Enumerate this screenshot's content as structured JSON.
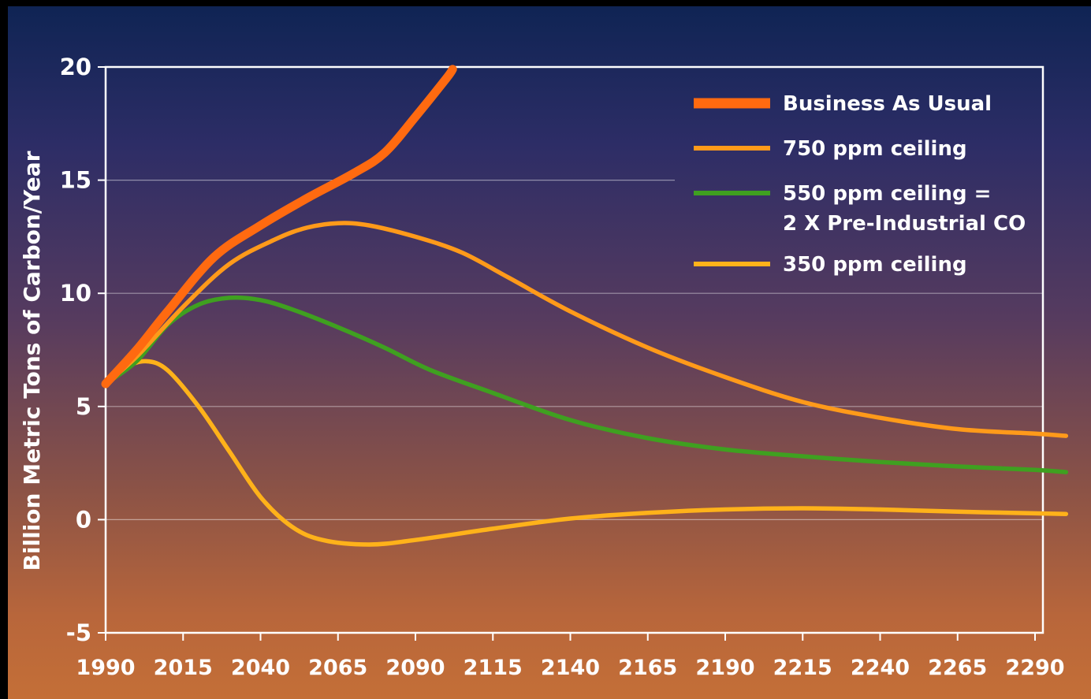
{
  "chart_data": {
    "type": "line",
    "title": "",
    "xlabel": "",
    "ylabel": "Billion Metric Tons of Carbon/Year",
    "xlim": [
      1990,
      2300
    ],
    "ylim": [
      -5,
      20
    ],
    "x_ticks": [
      1990,
      2015,
      2040,
      2065,
      2090,
      2115,
      2140,
      2165,
      2190,
      2215,
      2240,
      2265,
      2290
    ],
    "y_ticks": [
      -5,
      0,
      5,
      10,
      15,
      20
    ],
    "grid": true,
    "legend_position": "top-right",
    "series": [
      {
        "name": "Business As Usual",
        "color": "#ff6a10",
        "style": "thick",
        "points": [
          [
            1990,
            6.0
          ],
          [
            2000,
            7.5
          ],
          [
            2010,
            9.2
          ],
          [
            2025,
            11.6
          ],
          [
            2040,
            13.0
          ],
          [
            2055,
            14.2
          ],
          [
            2070,
            15.3
          ],
          [
            2080,
            16.2
          ],
          [
            2090,
            17.8
          ],
          [
            2100,
            19.5
          ],
          [
            2102,
            19.9
          ]
        ]
      },
      {
        "name": "750 ppm ceiling",
        "color": "#ff9a1a",
        "style": "normal",
        "points": [
          [
            1990,
            6.0
          ],
          [
            2000,
            7.2
          ],
          [
            2015,
            9.4
          ],
          [
            2030,
            11.3
          ],
          [
            2045,
            12.4
          ],
          [
            2055,
            12.9
          ],
          [
            2065,
            13.1
          ],
          [
            2075,
            13.0
          ],
          [
            2090,
            12.5
          ],
          [
            2105,
            11.8
          ],
          [
            2120,
            10.7
          ],
          [
            2140,
            9.2
          ],
          [
            2165,
            7.6
          ],
          [
            2190,
            6.3
          ],
          [
            2215,
            5.2
          ],
          [
            2240,
            4.5
          ],
          [
            2265,
            4.0
          ],
          [
            2290,
            3.8
          ],
          [
            2300,
            3.7
          ]
        ]
      },
      {
        "name": "550 ppm ceiling = 2 X Pre-Industrial CO",
        "color": "#3fa020",
        "style": "normal",
        "points": [
          [
            1990,
            6.0
          ],
          [
            2000,
            7.0
          ],
          [
            2010,
            8.6
          ],
          [
            2020,
            9.5
          ],
          [
            2030,
            9.8
          ],
          [
            2040,
            9.7
          ],
          [
            2050,
            9.3
          ],
          [
            2065,
            8.5
          ],
          [
            2080,
            7.6
          ],
          [
            2095,
            6.6
          ],
          [
            2115,
            5.6
          ],
          [
            2140,
            4.4
          ],
          [
            2165,
            3.6
          ],
          [
            2190,
            3.1
          ],
          [
            2215,
            2.8
          ],
          [
            2240,
            2.55
          ],
          [
            2265,
            2.35
          ],
          [
            2290,
            2.2
          ],
          [
            2300,
            2.1
          ]
        ]
      },
      {
        "name": "350 ppm ceiling",
        "color": "#ffb21a",
        "style": "normal",
        "points": [
          [
            1990,
            6.0
          ],
          [
            1996,
            6.7
          ],
          [
            2003,
            7.0
          ],
          [
            2010,
            6.6
          ],
          [
            2020,
            5.0
          ],
          [
            2030,
            3.0
          ],
          [
            2040,
            1.0
          ],
          [
            2050,
            -0.3
          ],
          [
            2060,
            -0.9
          ],
          [
            2075,
            -1.1
          ],
          [
            2090,
            -0.9
          ],
          [
            2115,
            -0.4
          ],
          [
            2140,
            0.05
          ],
          [
            2165,
            0.3
          ],
          [
            2190,
            0.45
          ],
          [
            2215,
            0.5
          ],
          [
            2240,
            0.45
          ],
          [
            2265,
            0.35
          ],
          [
            2290,
            0.28
          ],
          [
            2300,
            0.25
          ]
        ]
      }
    ]
  },
  "legend": [
    {
      "label": "Business As Usual",
      "color": "#ff6a10"
    },
    {
      "label": "750 ppm ceiling",
      "color": "#ff9a1a"
    },
    {
      "label": "550 ppm ceiling =",
      "label2": "2 X Pre-Industrial CO",
      "color": "#3fa020"
    },
    {
      "label": "350 ppm ceiling",
      "color": "#ffb21a"
    }
  ]
}
